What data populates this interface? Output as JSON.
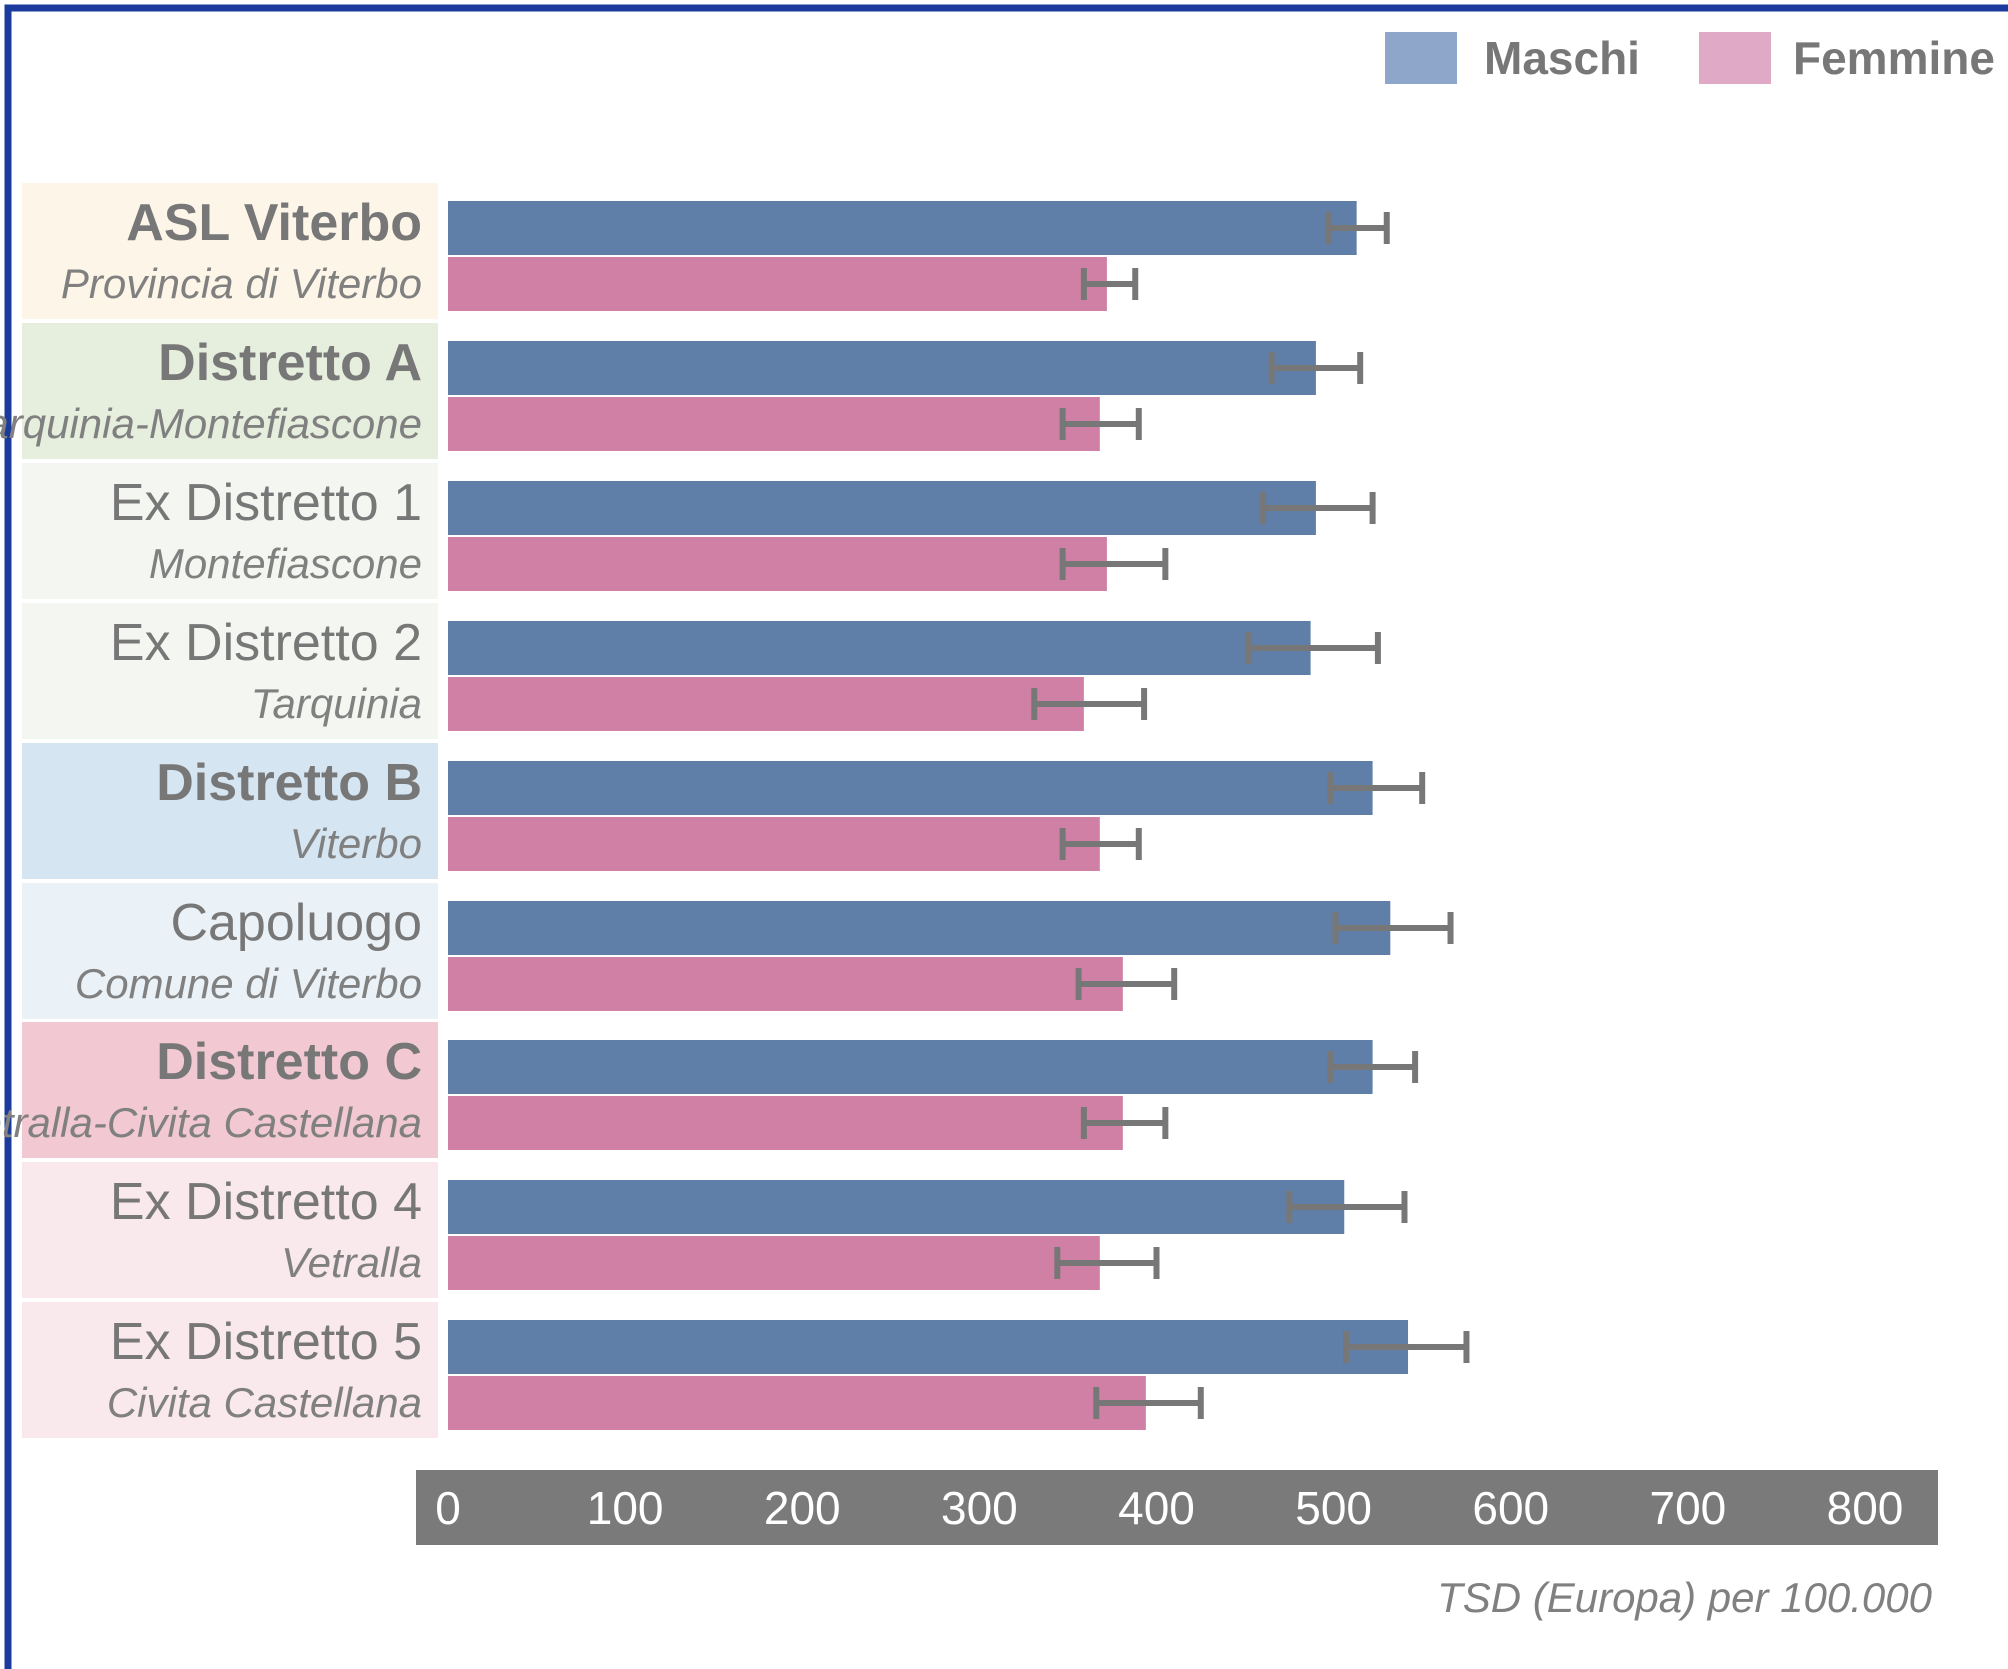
{
  "colors": {
    "border": "#1a3a9c",
    "male": "#5f7fa9",
    "female": "#d180a5",
    "legend_male": "#8ea6c9",
    "legend_female": "#e0a9c5",
    "errorbar": "#777777",
    "axis_band": "#7a7a7a",
    "group_bg": [
      "#fdf6e8",
      "#e6eedd",
      "#f4f7f1",
      "#f4f7f1",
      "#d5e5f1",
      "#eaf2f8",
      "#f2c9d3",
      "#f9e9ed",
      "#f9e9ed"
    ]
  },
  "chart_data": {
    "type": "bar",
    "orientation": "horizontal",
    "categories": [
      {
        "main": "ASL Viterbo",
        "sub": "Provincia di Viterbo",
        "bold": true
      },
      {
        "main": "Distretto A",
        "sub": "Tarquinia-Montefiascone",
        "bold": true
      },
      {
        "main": "Ex Distretto 1",
        "sub": "Montefiascone",
        "bold": false
      },
      {
        "main": "Ex Distretto 2",
        "sub": "Tarquinia",
        "bold": false
      },
      {
        "main": "Distretto B",
        "sub": "Viterbo",
        "bold": true
      },
      {
        "main": "Capoluogo",
        "sub": "Comune di Viterbo",
        "bold": false
      },
      {
        "main": "Distretto C",
        "sub": "Vetralla-Civita Castellana",
        "bold": true
      },
      {
        "main": "Ex Distretto 4",
        "sub": "Vetralla",
        "bold": false
      },
      {
        "main": "Ex Distretto 5",
        "sub": "Civita Castellana",
        "bold": false
      }
    ],
    "series": [
      {
        "name": "Maschi",
        "values": [
          513,
          490,
          490,
          487,
          522,
          532,
          522,
          506,
          542
        ],
        "ci_low": [
          497,
          465,
          460,
          452,
          498,
          501,
          498,
          475,
          507
        ],
        "ci_high": [
          530,
          515,
          522,
          525,
          550,
          566,
          546,
          540,
          575
        ]
      },
      {
        "name": "Femmine",
        "values": [
          372,
          368,
          372,
          359,
          368,
          381,
          381,
          368,
          394
        ],
        "ci_low": [
          359,
          347,
          347,
          331,
          347,
          356,
          359,
          344,
          366
        ],
        "ci_high": [
          388,
          390,
          405,
          393,
          390,
          410,
          405,
          400,
          425
        ]
      }
    ],
    "xlim": [
      0,
      800
    ],
    "xticks": [
      "0",
      "100",
      "200",
      "300",
      "400",
      "500",
      "600",
      "700",
      "800"
    ],
    "xlabel": "TSD (Europa) per 100.000",
    "legend": {
      "position": "top-right"
    },
    "grid": false
  }
}
